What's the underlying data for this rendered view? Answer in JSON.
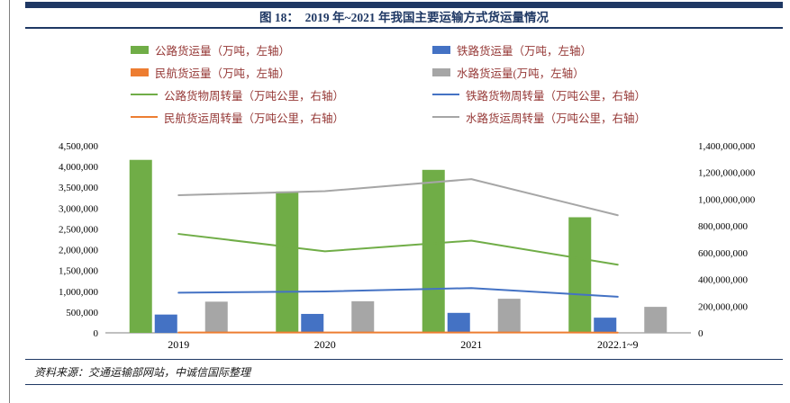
{
  "figure": {
    "title": "图 18：　2019 年~2021 年我国主要运输方式货运量情况",
    "source": "资料来源：交通运输部网站，中诚信国际整理"
  },
  "colors": {
    "navy": "#1F3864",
    "green": "#70AD47",
    "blue": "#4472C4",
    "orange": "#ED7D31",
    "gray": "#A6A6A6",
    "legend_text": "#953735",
    "axis_text": "#000000",
    "axis_line": "#808080",
    "source_text": "#1a1a1a"
  },
  "chart_data": {
    "type": "combo-bar-line",
    "title": "图 18：2019 年~2021 年我国主要运输方式货运量情况",
    "legend_position": "top",
    "grid": false,
    "categories": [
      "2019",
      "2020",
      "2021",
      "2022.1~9"
    ],
    "bar_series": [
      {
        "name": "公路货运量（万吨，左轴）",
        "color_key": "green",
        "axis": "left",
        "values": [
          4160000,
          3400000,
          3920000,
          2780000
        ]
      },
      {
        "name": "铁路货运量（万吨，左轴）",
        "color_key": "blue",
        "axis": "left",
        "values": [
          440000,
          455000,
          480000,
          365000
        ]
      },
      {
        "name": "民航货运量（万吨，左轴）",
        "color_key": "orange",
        "axis": "left",
        "values": [
          800,
          700,
          700,
          500
        ]
      },
      {
        "name": "水路货运量(万吨，左轴）",
        "color_key": "gray",
        "axis": "left",
        "values": [
          750000,
          760000,
          820000,
          625000
        ]
      }
    ],
    "line_series": [
      {
        "name": "公路货物周转量（万吨公里，右轴）",
        "color_key": "green",
        "axis": "right",
        "values": [
          740000000,
          610000000,
          690000000,
          510000000
        ]
      },
      {
        "name": "铁路货物周转量（万吨公里，右轴）",
        "color_key": "blue",
        "axis": "right",
        "values": [
          300000000,
          310000000,
          335000000,
          270000000
        ]
      },
      {
        "name": "民航货运周转量（万吨公里，右轴）",
        "color_key": "orange",
        "axis": "right",
        "values": [
          2600000,
          2400000,
          2800000,
          2000000
        ]
      },
      {
        "name": "水路货运周转量（万吨公里，右轴）",
        "color_key": "gray",
        "axis": "right",
        "values": [
          1030000000,
          1060000000,
          1150000000,
          880000000
        ]
      }
    ],
    "left_axis": {
      "min": 0,
      "max": 4500000,
      "step": 500000,
      "ticks": [
        "4,500,000",
        "4,000,000",
        "3,500,000",
        "3,000,000",
        "2,500,000",
        "2,000,000",
        "1,500,000",
        "1,000,000",
        "500,000",
        "0"
      ]
    },
    "right_axis": {
      "min": 0,
      "max": 1400000000,
      "step": 200000000,
      "ticks": [
        "1,400,000,000",
        "1,200,000,000",
        "1,000,000,000",
        "800,000,000",
        "600,000,000",
        "400,000,000",
        "200,000,000",
        "0"
      ]
    }
  }
}
